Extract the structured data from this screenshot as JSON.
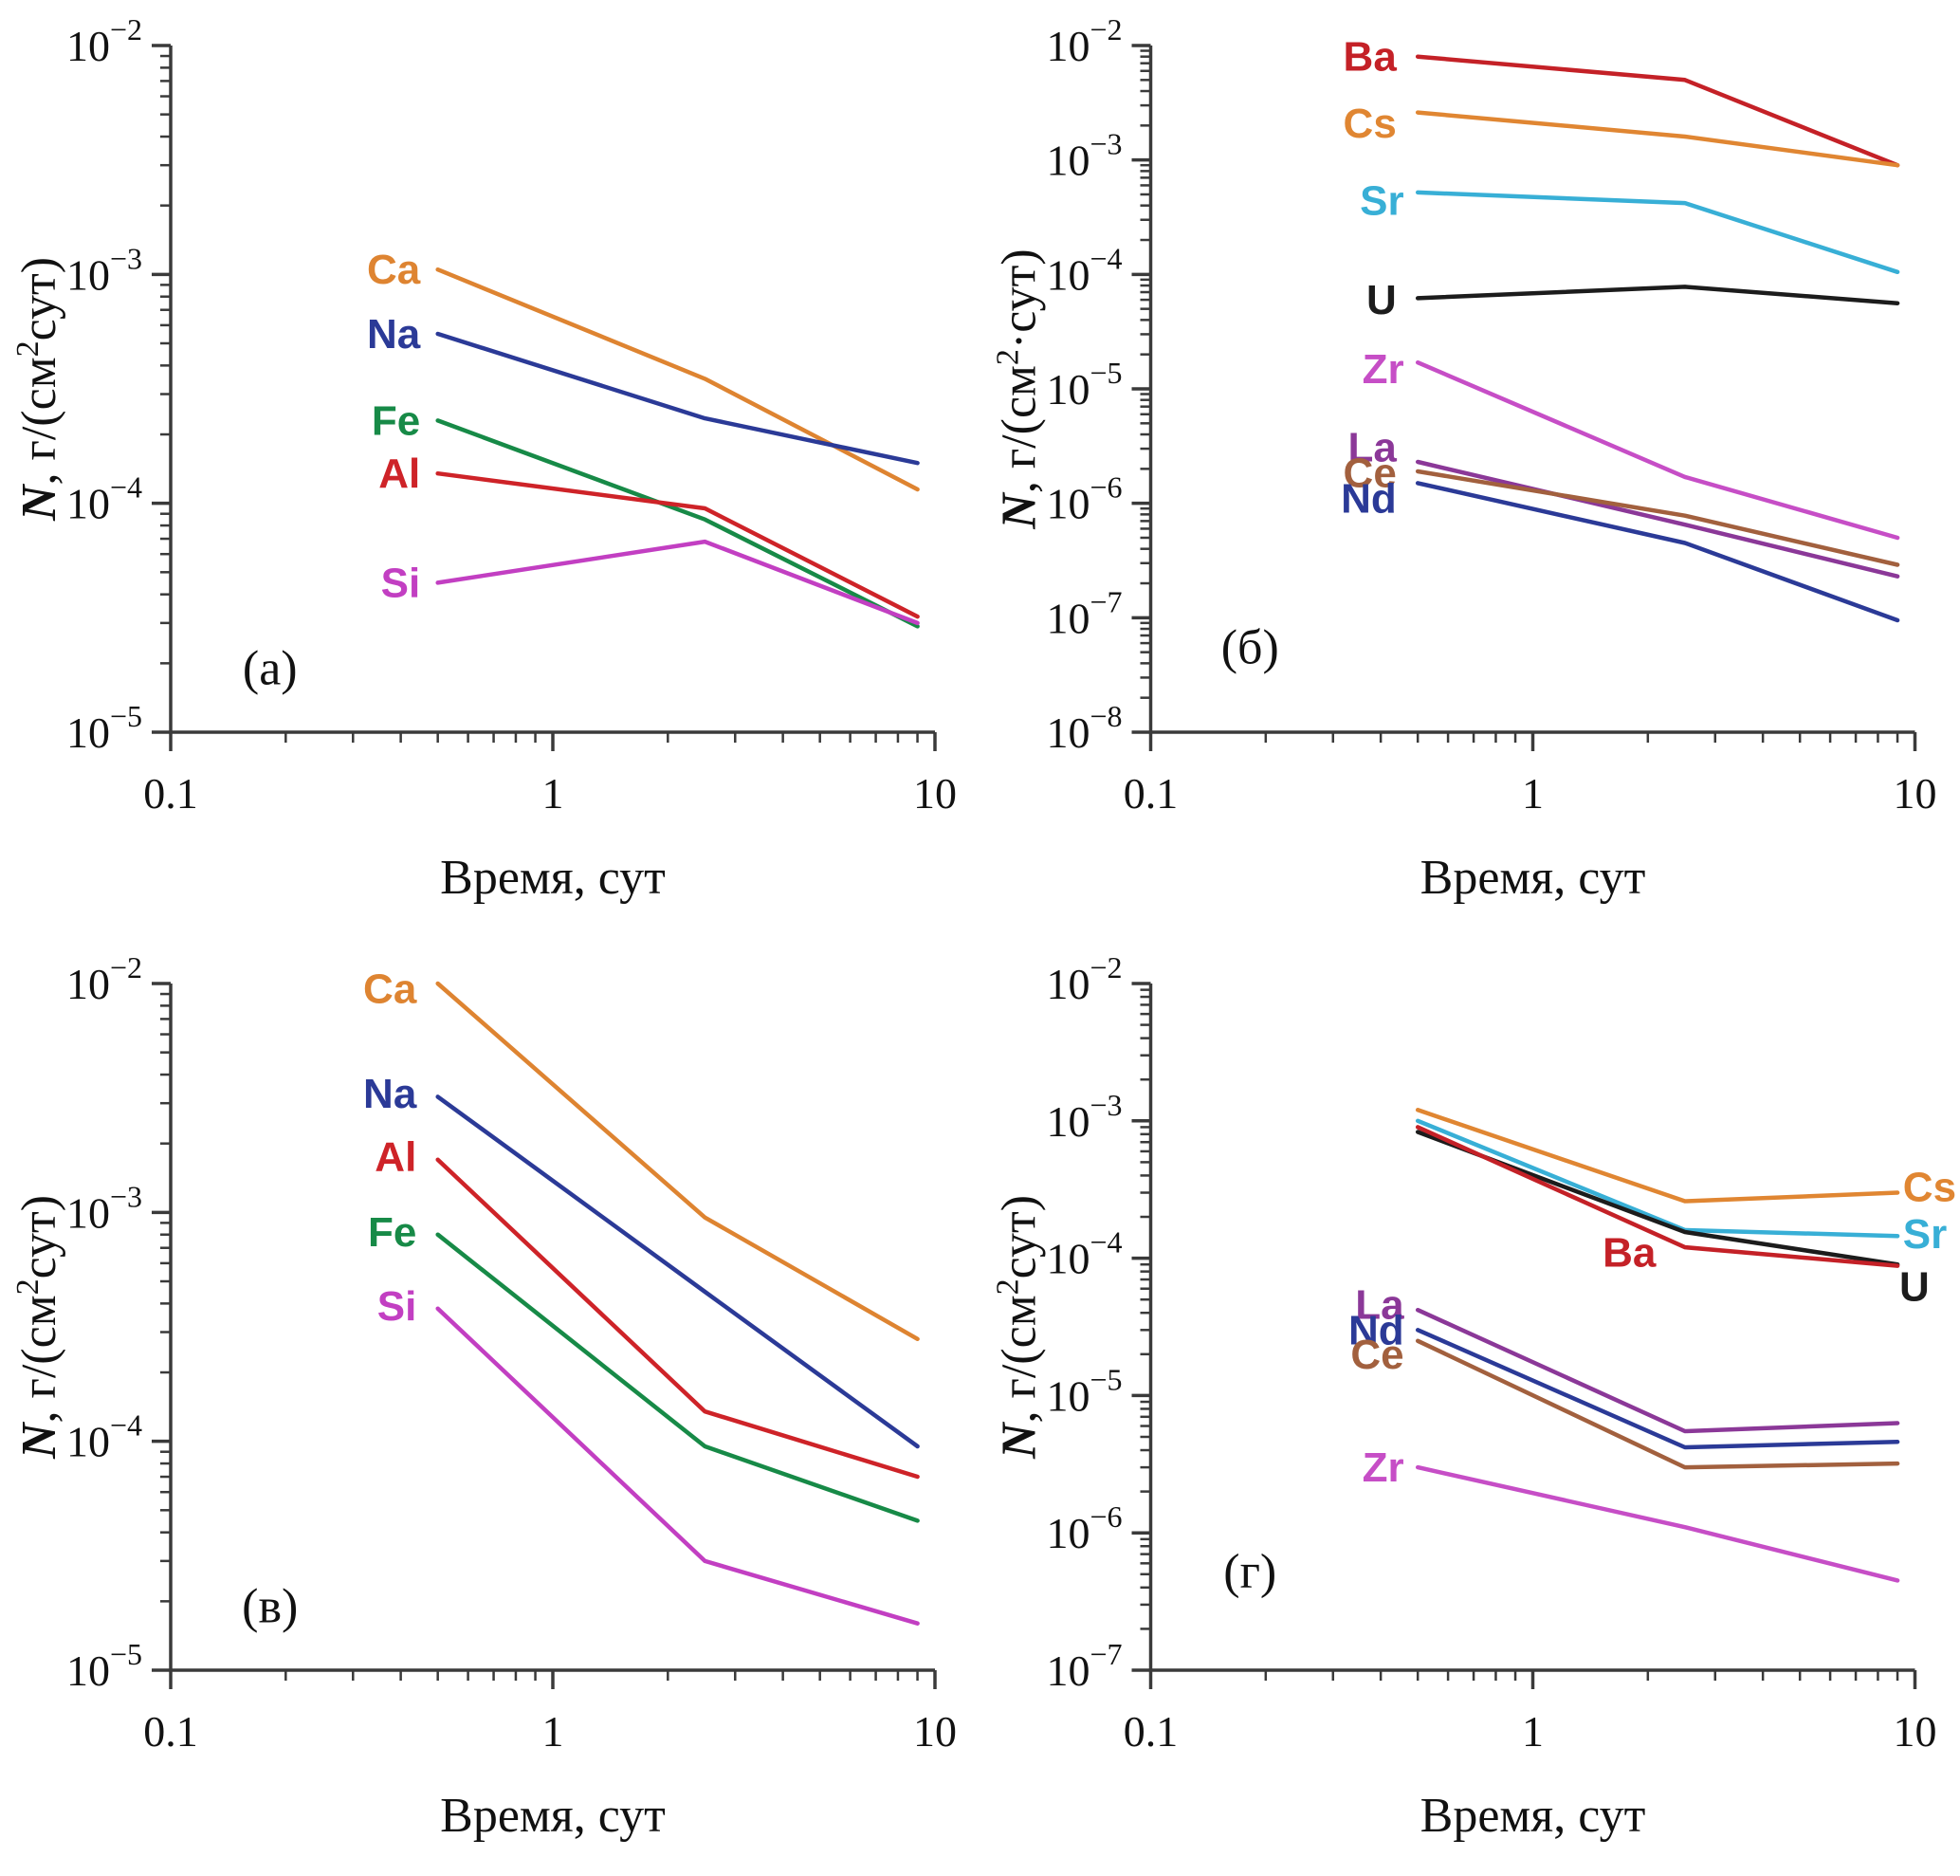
{
  "figure": {
    "background": "#ffffff",
    "axis_color": "#3a3a3a",
    "xlabel": "Время, сут",
    "x_tick_values": [
      0.1,
      1,
      10
    ],
    "x_tick_labels": [
      "0.1",
      "1",
      "10"
    ],
    "x_minor_ticks": [
      0.2,
      0.3,
      0.4,
      0.5,
      0.6,
      0.7,
      0.8,
      0.9,
      2,
      3,
      4,
      5,
      6,
      7,
      8,
      9
    ]
  },
  "chart_data": [
    {
      "type": "line",
      "panel_letter": "(а)",
      "panel_letter_pos": [
        0.13,
        0.93
      ],
      "xlabel": "Время, сут",
      "ylabel": "N, г/(см2сут)",
      "ylabel_parts": [
        {
          "t": "N",
          "italic": true
        },
        {
          "t": ", г/(см"
        },
        {
          "t": "2",
          "sup": true
        },
        {
          "t": "сут)"
        }
      ],
      "xlim": [
        0.1,
        10
      ],
      "ylim": [
        1e-05,
        0.01
      ],
      "y_exponents": [
        -2,
        -3,
        -4,
        -5
      ],
      "x": [
        0.5,
        2.5,
        9
      ],
      "series": [
        {
          "name": "Ca",
          "color": "#DE8431",
          "values": [
            0.00105,
            0.00035,
            0.000115
          ],
          "label": {
            "x": 0.45,
            "y": 0.00105,
            "anchor": "end"
          }
        },
        {
          "name": "Na",
          "color": "#2B3A97",
          "values": [
            0.00055,
            0.000235,
            0.00015
          ],
          "label": {
            "x": 0.45,
            "y": 0.00055,
            "anchor": "end"
          }
        },
        {
          "name": "Fe",
          "color": "#178A47",
          "values": [
            0.00023,
            8.5e-05,
            2.9e-05
          ],
          "label": {
            "x": 0.45,
            "y": 0.00023,
            "anchor": "end"
          }
        },
        {
          "name": "Al",
          "color": "#CE2328",
          "values": [
            0.000135,
            9.5e-05,
            3.2e-05
          ],
          "label": {
            "x": 0.45,
            "y": 0.000135,
            "anchor": "end"
          }
        },
        {
          "name": "Si",
          "color": "#C23FC2",
          "values": [
            4.5e-05,
            6.8e-05,
            3e-05
          ],
          "label": {
            "x": 0.45,
            "y": 4.5e-05,
            "anchor": "end"
          }
        }
      ]
    },
    {
      "type": "line",
      "panel_letter": "(б)",
      "panel_letter_pos": [
        0.13,
        0.9
      ],
      "xlabel": "Время, сут",
      "ylabel": "N, г/(см2·сут)",
      "ylabel_parts": [
        {
          "t": "N",
          "italic": true
        },
        {
          "t": ", г/(см"
        },
        {
          "t": "2",
          "sup": true
        },
        {
          "t": "·сут)"
        }
      ],
      "xlim": [
        0.1,
        10
      ],
      "ylim": [
        1e-08,
        0.01
      ],
      "y_exponents": [
        -2,
        -3,
        -4,
        -5,
        -6,
        -7,
        -8
      ],
      "x": [
        0.5,
        2.5,
        9
      ],
      "series": [
        {
          "name": "Ba",
          "color": "#C42127",
          "values": [
            0.008,
            0.005,
            0.0009
          ],
          "label": {
            "x": 0.44,
            "y": 0.008,
            "anchor": "end"
          }
        },
        {
          "name": "Cs",
          "color": "#E08632",
          "values": [
            0.0026,
            0.0016,
            0.0009
          ],
          "label": {
            "x": 0.44,
            "y": 0.0021,
            "anchor": "end"
          }
        },
        {
          "name": "Sr",
          "color": "#38AFD6",
          "values": [
            0.00052,
            0.00042,
            0.000105
          ],
          "label": {
            "x": 0.46,
            "y": 0.00044,
            "anchor": "end"
          }
        },
        {
          "name": "U",
          "color": "#1C1C1C",
          "values": [
            6.2e-05,
            7.8e-05,
            5.6e-05
          ],
          "label": {
            "x": 0.44,
            "y": 6e-05,
            "anchor": "end"
          }
        },
        {
          "name": "Zr",
          "color": "#C64EC6",
          "values": [
            1.7e-05,
            1.7e-06,
            5e-07
          ],
          "label": {
            "x": 0.46,
            "y": 1.5e-05,
            "anchor": "end"
          }
        },
        {
          "name": "La",
          "color": "#8B3898",
          "values": [
            2.3e-06,
            6.5e-07,
            2.3e-07
          ],
          "label": {
            "x": 0.44,
            "y": 3.1e-06,
            "anchor": "end"
          }
        },
        {
          "name": "Ce",
          "color": "#A2603E",
          "values": [
            1.9e-06,
            7.8e-07,
            2.9e-07
          ],
          "label": {
            "x": 0.44,
            "y": 1.85e-06,
            "anchor": "end"
          }
        },
        {
          "name": "Nd",
          "color": "#2B3A97",
          "values": [
            1.5e-06,
            4.5e-07,
            9.5e-08
          ],
          "label": {
            "x": 0.44,
            "y": 1.1e-06,
            "anchor": "end"
          }
        }
      ]
    },
    {
      "type": "line",
      "panel_letter": "(в)",
      "panel_letter_pos": [
        0.13,
        0.93
      ],
      "xlabel": "Время, сут",
      "ylabel": "N, г/(см2сут)",
      "ylabel_parts": [
        {
          "t": "N",
          "italic": true
        },
        {
          "t": ", г/(см"
        },
        {
          "t": "2",
          "sup": true
        },
        {
          "t": "сут)"
        }
      ],
      "xlim": [
        0.1,
        10
      ],
      "ylim": [
        1e-05,
        0.01
      ],
      "y_exponents": [
        -2,
        -3,
        -4,
        -5
      ],
      "x": [
        0.5,
        2.5,
        9
      ],
      "series": [
        {
          "name": "Ca",
          "color": "#DE8431",
          "values": [
            0.01,
            0.00095,
            0.00028
          ],
          "label": {
            "x": 0.44,
            "y": 0.0095,
            "anchor": "end"
          }
        },
        {
          "name": "Na",
          "color": "#2B3A97",
          "values": [
            0.0032,
            0.00045,
            9.5e-05
          ],
          "label": {
            "x": 0.44,
            "y": 0.0033,
            "anchor": "end"
          }
        },
        {
          "name": "Al",
          "color": "#CE2328",
          "values": [
            0.0017,
            0.000135,
            7e-05
          ],
          "label": {
            "x": 0.44,
            "y": 0.00175,
            "anchor": "end"
          }
        },
        {
          "name": "Fe",
          "color": "#178A47",
          "values": [
            0.0008,
            9.5e-05,
            4.5e-05
          ],
          "label": {
            "x": 0.44,
            "y": 0.00082,
            "anchor": "end"
          }
        },
        {
          "name": "Si",
          "color": "#C23FC2",
          "values": [
            0.00038,
            3e-05,
            1.6e-05
          ],
          "label": {
            "x": 0.44,
            "y": 0.00039,
            "anchor": "end"
          }
        }
      ]
    },
    {
      "type": "line",
      "panel_letter": "(г)",
      "panel_letter_pos": [
        0.13,
        0.88
      ],
      "xlabel": "Время, сут",
      "ylabel": "N, г/(см2сут)",
      "ylabel_parts": [
        {
          "t": "N",
          "italic": true
        },
        {
          "t": ", г/(см"
        },
        {
          "t": "2",
          "sup": true
        },
        {
          "t": "сут)"
        }
      ],
      "xlim": [
        0.1,
        10
      ],
      "ylim": [
        1e-07,
        0.01
      ],
      "y_exponents": [
        -2,
        -3,
        -4,
        -5,
        -6,
        -7
      ],
      "x": [
        0.5,
        2.5,
        9
      ],
      "series": [
        {
          "name": "Cs",
          "color": "#E08632",
          "values": [
            0.0012,
            0.00026,
            0.0003
          ],
          "label": {
            "x": 9.3,
            "y": 0.00033,
            "anchor": "start"
          }
        },
        {
          "name": "Sr",
          "color": "#38AFD6",
          "values": [
            0.001,
            0.00016,
            0.000145
          ],
          "label": {
            "x": 9.3,
            "y": 0.00015,
            "anchor": "start"
          }
        },
        {
          "name": "U",
          "color": "#1C1C1C",
          "values": [
            0.00083,
            0.000155,
            9e-05
          ],
          "label": {
            "x": 9.1,
            "y": 6.2e-05,
            "anchor": "start"
          }
        },
        {
          "name": "Ba",
          "color": "#C42127",
          "values": [
            0.0009,
            0.00012,
            8.8e-05
          ],
          "label": {
            "x": 2.1,
            "y": 0.00011,
            "anchor": "end"
          }
        },
        {
          "name": "La",
          "color": "#8B3898",
          "values": [
            4.2e-05,
            5.5e-06,
            6.3e-06
          ],
          "label": {
            "x": 0.46,
            "y": 4.6e-05,
            "anchor": "end"
          }
        },
        {
          "name": "Nd",
          "color": "#2B3A97",
          "values": [
            3e-05,
            4.2e-06,
            4.6e-06
          ],
          "label": {
            "x": 0.46,
            "y": 3e-05,
            "anchor": "end"
          }
        },
        {
          "name": "Ce",
          "color": "#A2603E",
          "values": [
            2.5e-05,
            3e-06,
            3.2e-06
          ],
          "label": {
            "x": 0.46,
            "y": 2e-05,
            "anchor": "end"
          }
        },
        {
          "name": "Zr",
          "color": "#C64EC6",
          "values": [
            3e-06,
            1.1e-06,
            4.5e-07
          ],
          "label": {
            "x": 0.46,
            "y": 3e-06,
            "anchor": "end"
          }
        }
      ]
    }
  ]
}
